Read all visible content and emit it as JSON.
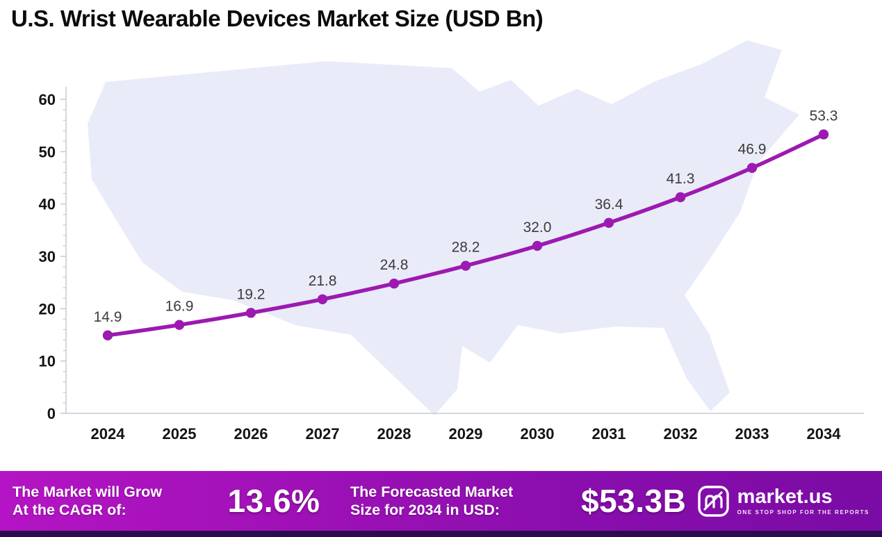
{
  "chart_data": {
    "type": "line",
    "title": "U.S. Wrist Wearable Devices Market Size (USD Bn)",
    "categories": [
      "2024",
      "2025",
      "2026",
      "2027",
      "2028",
      "2029",
      "2030",
      "2031",
      "2032",
      "2033",
      "2034"
    ],
    "values": [
      14.9,
      16.9,
      19.2,
      21.8,
      24.8,
      28.2,
      32.0,
      36.4,
      41.3,
      46.9,
      53.3
    ],
    "series_name": "U.S. Wrist Wearable Devices Market Size",
    "xlabel": "",
    "ylabel": "",
    "ylim": [
      0,
      60
    ],
    "yticks": [
      0,
      10,
      20,
      30,
      40,
      50,
      60
    ],
    "grid": false,
    "legend_position": "none",
    "line_color": "#9c1ab1",
    "marker_color": "#9c1ab1",
    "data_label_color": "#3c3c3c",
    "background_motif": "us-map-silhouette",
    "background_motif_color": "#e9ebf8"
  },
  "footer": {
    "cagr_label_line1": "The Market will Grow",
    "cagr_label_line2": "At the CAGR of:",
    "cagr_value": "13.6%",
    "forecast_label_line1": "The Forecasted Market",
    "forecast_label_line2": "Size for 2034 in USD:",
    "forecast_value": "$53.3B",
    "band_gradient": [
      "#b414c4",
      "#7a0ba4"
    ],
    "bottom_strip_color": "#2c0b50",
    "brand": {
      "icon": "market-us-logo-icon",
      "name": "market.us",
      "tagline": "ONE STOP SHOP FOR THE REPORTS"
    }
  }
}
